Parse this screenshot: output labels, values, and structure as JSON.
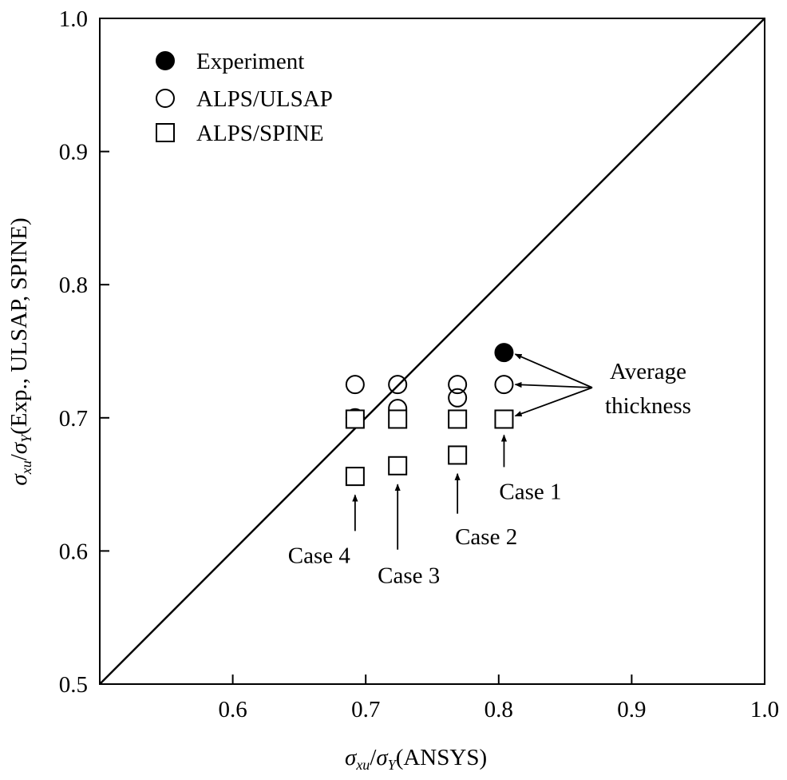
{
  "chart_data": {
    "type": "scatter",
    "xlabel": {
      "sigma": "σ",
      "sub1": "xu",
      "slash": "/",
      "sub2": "Y",
      "rest": "(ANSYS)"
    },
    "ylabel": {
      "sigma": "σ",
      "sub1": "xu",
      "slash": "/",
      "sub2": "Y",
      "rest": "(Exp., ULSAP, SPINE)"
    },
    "xlim": [
      0.5,
      1.0
    ],
    "ylim": [
      0.5,
      1.0
    ],
    "xticks": [
      "0.6",
      "0.7",
      "0.8",
      "0.9",
      "1.0"
    ],
    "yticks": [
      "0.5",
      "0.6",
      "0.7",
      "0.8",
      "0.9",
      "1.0"
    ],
    "reference_line": {
      "name": "y = x",
      "from": [
        0.5,
        0.5
      ],
      "to": [
        1.0,
        1.0
      ]
    },
    "series": [
      {
        "name": "Experiment",
        "marker": "filled-circle",
        "points": [
          {
            "x": 0.804,
            "y": 0.749
          }
        ]
      },
      {
        "name": "ALPS/ULSAP",
        "marker": "open-circle",
        "points": [
          {
            "x": 0.692,
            "y": 0.725
          },
          {
            "x": 0.692,
            "y": 0.7
          },
          {
            "x": 0.724,
            "y": 0.725
          },
          {
            "x": 0.724,
            "y": 0.707
          },
          {
            "x": 0.769,
            "y": 0.725
          },
          {
            "x": 0.769,
            "y": 0.715
          },
          {
            "x": 0.804,
            "y": 0.725
          }
        ]
      },
      {
        "name": "ALPS/SPINE",
        "marker": "open-square",
        "points": [
          {
            "x": 0.692,
            "y": 0.699
          },
          {
            "x": 0.692,
            "y": 0.656
          },
          {
            "x": 0.724,
            "y": 0.699
          },
          {
            "x": 0.724,
            "y": 0.664
          },
          {
            "x": 0.769,
            "y": 0.699
          },
          {
            "x": 0.769,
            "y": 0.672
          },
          {
            "x": 0.804,
            "y": 0.699
          }
        ]
      }
    ],
    "annotations": {
      "average_thickness": [
        "Average",
        "thickness"
      ],
      "cases": [
        {
          "label": "Case 1",
          "x": 0.804,
          "arrow_to_y": 0.687,
          "arrow_from_y": 0.663,
          "text_y": 0.645
        },
        {
          "label": "Case 2",
          "x": 0.769,
          "arrow_to_y": 0.658,
          "arrow_from_y": 0.628,
          "text_y": 0.611
        },
        {
          "label": "Case 3",
          "x": 0.724,
          "arrow_to_y": 0.65,
          "arrow_from_y": 0.601,
          "text_y": 0.582
        },
        {
          "label": "Case 4",
          "x": 0.692,
          "arrow_to_y": 0.642,
          "arrow_from_y": 0.615,
          "text_y": 0.597
        }
      ]
    }
  }
}
